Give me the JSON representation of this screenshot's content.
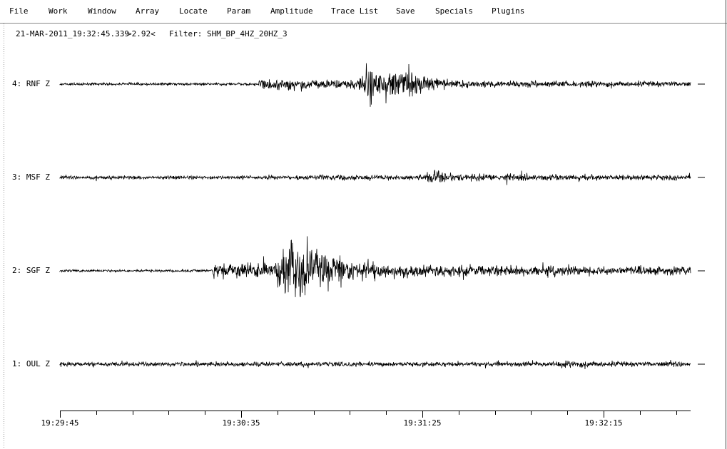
{
  "menu": [
    "File",
    "Work",
    "Window",
    "Array",
    "Locate",
    "Param",
    "Amplitude",
    "Trace List",
    "Save",
    "Specials",
    "Plugins"
  ],
  "header": {
    "time": "21-MAR-2011_19:32:45.339",
    "ratio": ">2.92<",
    "filter": "Filter: SHM_BP_4HZ_20HZ_3"
  },
  "traces": [
    "4: RNF Z",
    "3: MSF Z",
    "2: SGF Z",
    "1: OUL Z"
  ],
  "time_axis": [
    "19:29:45",
    "19:30:35",
    "19:31:25",
    "19:32:15"
  ]
}
